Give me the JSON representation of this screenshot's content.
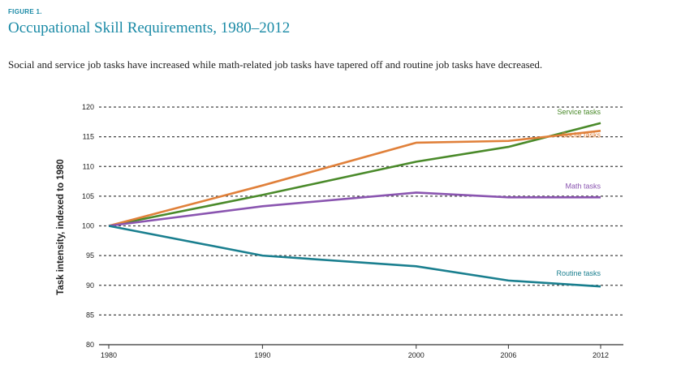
{
  "figure_label": "FIGURE 1.",
  "title": "Occupational Skill Requirements, 1980–2012",
  "subtitle": "Social and service job tasks have increased while math-related job tasks have tapered off and routine job tasks have decreased.",
  "colors": {
    "accent": "#1a8aa6",
    "service": "#4a8a2a",
    "social": "#e0803a",
    "math": "#8a55b0",
    "routine": "#1a7f8f"
  },
  "chart_data": {
    "type": "line",
    "title": "Occupational Skill Requirements, 1980–2012",
    "xlabel": "",
    "ylabel": "Task intensity, indexed to 1980",
    "x": [
      1980,
      1990,
      2000,
      2006,
      2012
    ],
    "ylim": [
      80,
      120
    ],
    "yticks": [
      80,
      85,
      90,
      95,
      100,
      105,
      110,
      115,
      120
    ],
    "grid": true,
    "series": [
      {
        "name": "Service tasks",
        "values": [
          100,
          105.2,
          110.8,
          113.3,
          117.3
        ]
      },
      {
        "name": "Social tasks",
        "values": [
          100,
          106.8,
          114.0,
          114.3,
          116.0
        ]
      },
      {
        "name": "Math tasks",
        "values": [
          100,
          103.3,
          105.6,
          104.8,
          104.8
        ]
      },
      {
        "name": "Routine tasks",
        "values": [
          100,
          95.0,
          93.2,
          90.8,
          89.8
        ]
      }
    ]
  }
}
